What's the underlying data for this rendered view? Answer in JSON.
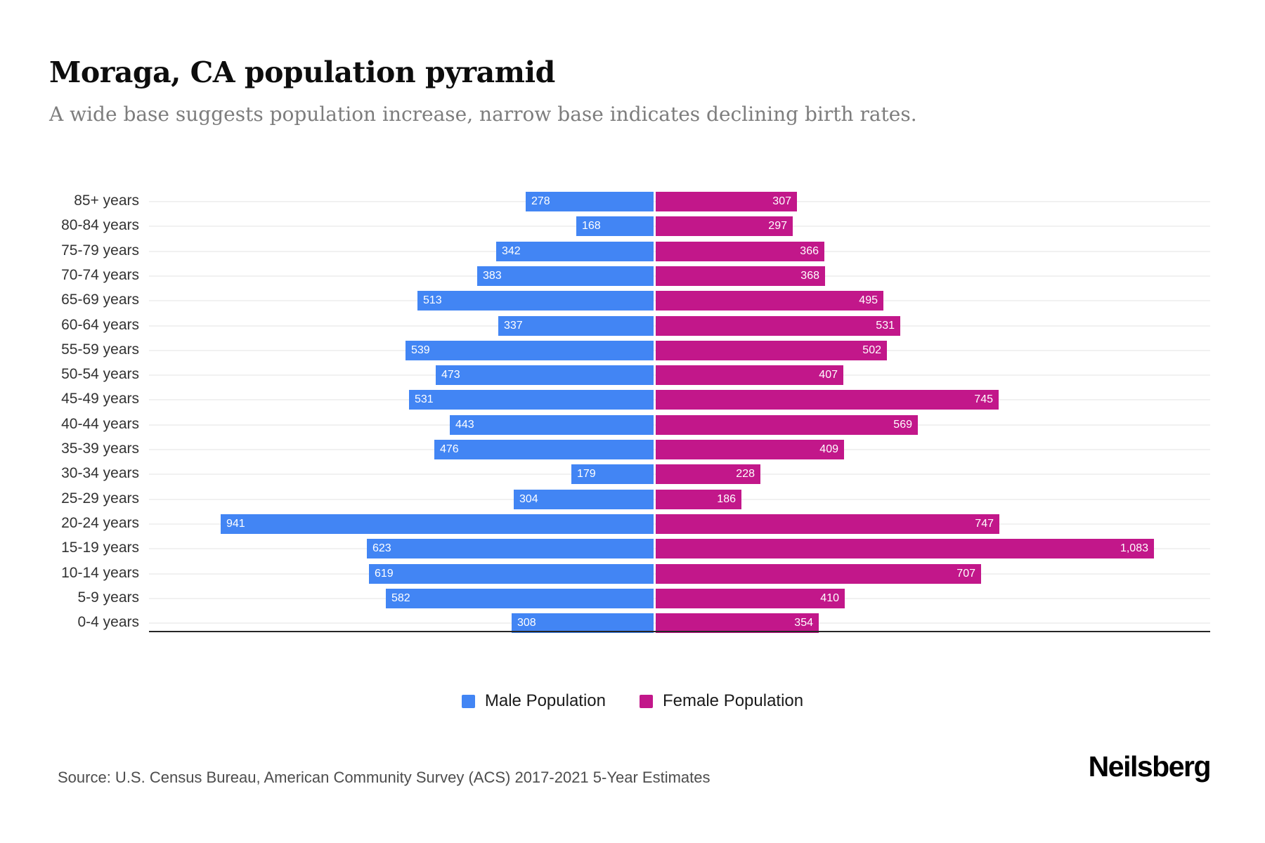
{
  "header": {
    "title": "Moraga, CA population pyramid",
    "subtitle": "A wide base suggests population increase, narrow base indicates declining birth rates."
  },
  "chart_data": {
    "type": "bar",
    "variant": "population-pyramid",
    "orientation": "horizontal",
    "title": "Moraga, CA population pyramid",
    "categories": [
      "85+ years",
      "80-84 years",
      "75-79 years",
      "70-74 years",
      "65-69 years",
      "60-64 years",
      "55-59 years",
      "50-54 years",
      "45-49 years",
      "40-44 years",
      "35-39 years",
      "30-34 years",
      "25-29 years",
      "20-24 years",
      "15-19 years",
      "10-14 years",
      "5-9 years",
      "0-4 years"
    ],
    "series": [
      {
        "name": "Male Population",
        "color": "#4285F4",
        "values": [
          278,
          168,
          342,
          383,
          513,
          337,
          539,
          473,
          531,
          443,
          476,
          179,
          304,
          941,
          623,
          619,
          582,
          308
        ]
      },
      {
        "name": "Female Population",
        "color": "#C2178A",
        "values": [
          307,
          297,
          366,
          368,
          495,
          531,
          502,
          407,
          745,
          569,
          409,
          228,
          186,
          747,
          1083,
          707,
          410,
          354
        ]
      }
    ],
    "value_labels": "inside-bar-ends, white",
    "grid": "horizontal row lines, light gray",
    "legend_position": "bottom-center",
    "male_axis_max": 1100,
    "female_axis_max": 1200
  },
  "legend": {
    "items": [
      {
        "label": "Male Population",
        "color": "#4285F4"
      },
      {
        "label": "Female Population",
        "color": "#C2178A"
      }
    ]
  },
  "footer": {
    "source": "Source: U.S. Census Bureau, American Community Survey (ACS) 2017-2021 5-Year Estimates",
    "brand": "Neilsberg"
  },
  "colors": {
    "male": "#4285F4",
    "female": "#C2178A",
    "gridline": "#f1f1f1",
    "axis": "#262626",
    "background": "#ffffff"
  }
}
